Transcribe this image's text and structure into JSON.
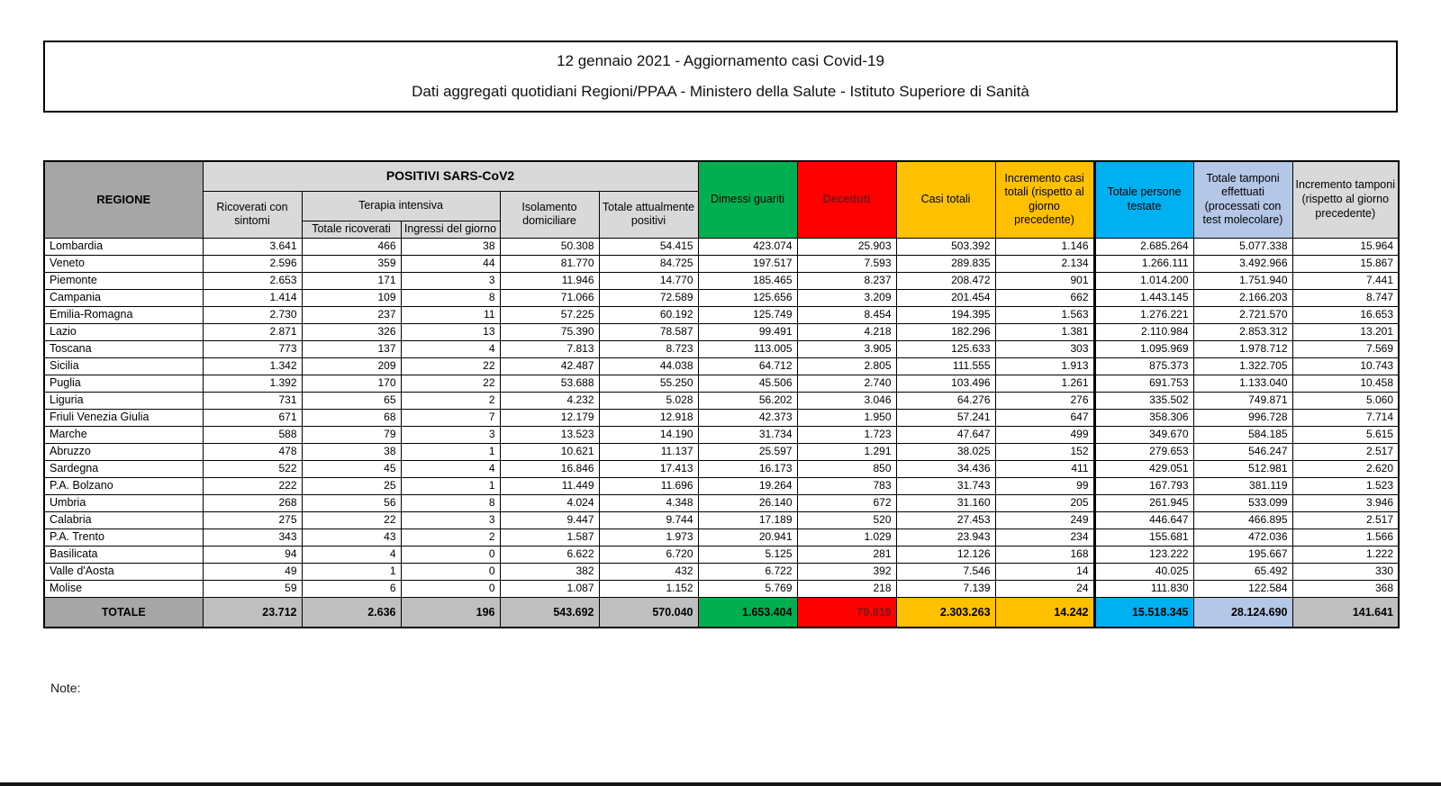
{
  "page": {
    "title_line1": "12 gennaio 2021 - Aggiornamento casi Covid-19",
    "title_line2": "Dati aggregati quotidiani Regioni/PPAA - Ministero della Salute - Istituto Superiore di Sanità",
    "note_label": "Note:"
  },
  "colors": {
    "header_region_gray": "#a6a6a6",
    "header_light_gray": "#d9d9d9",
    "green": "#00b050",
    "red": "#ff0000",
    "yellow": "#ffc000",
    "blue": "#00b0f0",
    "lavender": "#b4c7e7",
    "totale_gray": "#bfbfbf",
    "deceduti_text": "#7c1416"
  },
  "table": {
    "headers": {
      "regione": "REGIONE",
      "positivi_group": "POSITIVI SARS-CoV2",
      "terapia_group": "Terapia intensiva",
      "ricoverati_con_sintomi": "Ricoverati con sintomi",
      "totale_ricoverati": "Totale ricoverati",
      "ingressi_del_giorno": "Ingressi del giorno",
      "isolamento_domiciliare": "Isolamento domiciliare",
      "totale_attualmente_positivi": "Totale attualmente positivi",
      "dimessi_guariti": "Dimessi guariti",
      "deceduti": "Deceduti",
      "casi_totali": "Casi totali",
      "incremento_casi": "Incremento casi totali (rispetto al giorno precedente)",
      "persone_testate": "Totale persone testate",
      "tamponi": "Totale tamponi effettuati (processati con test molecolare)",
      "incremento_tamponi": "Incremento tamponi (rispetto al giorno precedente)"
    },
    "rows": [
      {
        "regione": "Lombardia",
        "values": [
          "3.641",
          "466",
          "38",
          "50.308",
          "54.415",
          "423.074",
          "25.903",
          "503.392",
          "1.146",
          "2.685.264",
          "5.077.338",
          "15.964"
        ]
      },
      {
        "regione": "Veneto",
        "values": [
          "2.596",
          "359",
          "44",
          "81.770",
          "84.725",
          "197.517",
          "7.593",
          "289.835",
          "2.134",
          "1.266.111",
          "3.492.966",
          "15.867"
        ]
      },
      {
        "regione": "Piemonte",
        "values": [
          "2.653",
          "171",
          "3",
          "11.946",
          "14.770",
          "185.465",
          "8.237",
          "208.472",
          "901",
          "1.014.200",
          "1.751.940",
          "7.441"
        ]
      },
      {
        "regione": "Campania",
        "values": [
          "1.414",
          "109",
          "8",
          "71.066",
          "72.589",
          "125.656",
          "3.209",
          "201.454",
          "662",
          "1.443.145",
          "2.166.203",
          "8.747"
        ]
      },
      {
        "regione": "Emilia-Romagna",
        "values": [
          "2.730",
          "237",
          "11",
          "57.225",
          "60.192",
          "125.749",
          "8.454",
          "194.395",
          "1.563",
          "1.276.221",
          "2.721.570",
          "16.653"
        ]
      },
      {
        "regione": "Lazio",
        "values": [
          "2.871",
          "326",
          "13",
          "75.390",
          "78.587",
          "99.491",
          "4.218",
          "182.296",
          "1.381",
          "2.110.984",
          "2.853.312",
          "13.201"
        ]
      },
      {
        "regione": "Toscana",
        "values": [
          "773",
          "137",
          "4",
          "7.813",
          "8.723",
          "113.005",
          "3.905",
          "125.633",
          "303",
          "1.095.969",
          "1.978.712",
          "7.569"
        ]
      },
      {
        "regione": "Sicilia",
        "values": [
          "1.342",
          "209",
          "22",
          "42.487",
          "44.038",
          "64.712",
          "2.805",
          "111.555",
          "1.913",
          "875.373",
          "1.322.705",
          "10.743"
        ]
      },
      {
        "regione": "Puglia",
        "values": [
          "1.392",
          "170",
          "22",
          "53.688",
          "55.250",
          "45.506",
          "2.740",
          "103.496",
          "1.261",
          "691.753",
          "1.133.040",
          "10.458"
        ]
      },
      {
        "regione": "Liguria",
        "values": [
          "731",
          "65",
          "2",
          "4.232",
          "5.028",
          "56.202",
          "3.046",
          "64.276",
          "276",
          "335.502",
          "749.871",
          "5.060"
        ]
      },
      {
        "regione": "Friuli Venezia Giulia",
        "values": [
          "671",
          "68",
          "7",
          "12.179",
          "12.918",
          "42.373",
          "1.950",
          "57.241",
          "647",
          "358.306",
          "996.728",
          "7.714"
        ]
      },
      {
        "regione": "Marche",
        "values": [
          "588",
          "79",
          "3",
          "13.523",
          "14.190",
          "31.734",
          "1.723",
          "47.647",
          "499",
          "349.670",
          "584.185",
          "5.615"
        ]
      },
      {
        "regione": "Abruzzo",
        "values": [
          "478",
          "38",
          "1",
          "10.621",
          "11.137",
          "25.597",
          "1.291",
          "38.025",
          "152",
          "279.653",
          "546.247",
          "2.517"
        ]
      },
      {
        "regione": "Sardegna",
        "values": [
          "522",
          "45",
          "4",
          "16.846",
          "17.413",
          "16.173",
          "850",
          "34.436",
          "411",
          "429.051",
          "512.981",
          "2.620"
        ]
      },
      {
        "regione": "P.A. Bolzano",
        "values": [
          "222",
          "25",
          "1",
          "11.449",
          "11.696",
          "19.264",
          "783",
          "31.743",
          "99",
          "167.793",
          "381.119",
          "1.523"
        ]
      },
      {
        "regione": "Umbria",
        "values": [
          "268",
          "56",
          "8",
          "4.024",
          "4.348",
          "26.140",
          "672",
          "31.160",
          "205",
          "261.945",
          "533.099",
          "3.946"
        ]
      },
      {
        "regione": "Calabria",
        "values": [
          "275",
          "22",
          "3",
          "9.447",
          "9.744",
          "17.189",
          "520",
          "27.453",
          "249",
          "446.647",
          "466.895",
          "2.517"
        ]
      },
      {
        "regione": "P.A. Trento",
        "values": [
          "343",
          "43",
          "2",
          "1.587",
          "1.973",
          "20.941",
          "1.029",
          "23.943",
          "234",
          "155.681",
          "472.036",
          "1.566"
        ]
      },
      {
        "regione": "Basilicata",
        "values": [
          "94",
          "4",
          "0",
          "6.622",
          "6.720",
          "5.125",
          "281",
          "12.126",
          "168",
          "123.222",
          "195.667",
          "1.222"
        ]
      },
      {
        "regione": "Valle d'Aosta",
        "values": [
          "49",
          "1",
          "0",
          "382",
          "432",
          "6.722",
          "392",
          "7.546",
          "14",
          "40.025",
          "65.492",
          "330"
        ]
      },
      {
        "regione": "Molise",
        "values": [
          "59",
          "6",
          "0",
          "1.087",
          "1.152",
          "5.769",
          "218",
          "7.139",
          "24",
          "111.830",
          "122.584",
          "368"
        ]
      }
    ],
    "totale": {
      "label": "TOTALE",
      "values": [
        "23.712",
        "2.636",
        "196",
        "543.692",
        "570.040",
        "1.653.404",
        "79.819",
        "2.303.263",
        "14.242",
        "15.518.345",
        "28.124.690",
        "141.641"
      ]
    }
  }
}
